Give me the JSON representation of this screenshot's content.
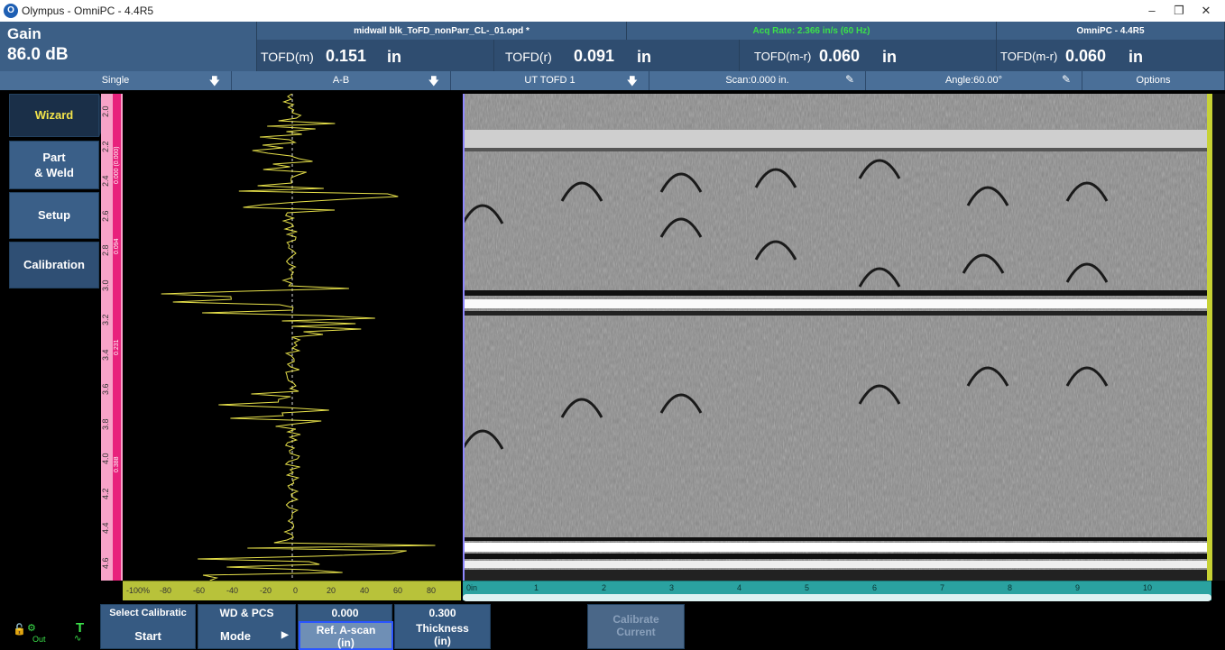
{
  "window": {
    "app_title": "Olympus - OmniPC - 4.4R5",
    "logo_glyph": "O"
  },
  "header": {
    "gain_label": "Gain",
    "gain_value": "86.0 dB",
    "file_name": "midwall blk_ToFD_nonParr_CL-_01.opd *",
    "acq_rate": "Acq Rate: 2.366 in/s (60 Hz)",
    "app_version": "OmniPC - 4.4R5",
    "readouts": [
      {
        "label": "TOFD(m)",
        "value": "0.151",
        "unit": "in"
      },
      {
        "label": "TOFD(r)",
        "value": "0.091",
        "unit": "in"
      },
      {
        "label": "TOFD(m-r)",
        "value": "0.060",
        "unit": "in"
      },
      {
        "label": "TOFD(m-r)",
        "value": "0.060",
        "unit": "in"
      }
    ]
  },
  "selectors": [
    {
      "label": "Single",
      "icon": "dropdown-arrow-icon"
    },
    {
      "label": "A-B",
      "icon": "dropdown-arrow-icon"
    },
    {
      "label": "UT TOFD 1",
      "icon": "dropdown-arrow-icon"
    },
    {
      "label": "Scan:0.000 in.",
      "icon": "pencil-icon"
    },
    {
      "label": "Angle:60.00°",
      "icon": "pencil-icon"
    },
    {
      "label": "Options",
      "icon": ""
    }
  ],
  "wizard": {
    "items": [
      {
        "label": "Wizard",
        "active": true
      },
      {
        "label_line1": "Part",
        "label_line2": "& Weld"
      },
      {
        "label": "Setup"
      },
      {
        "label": "Calibration"
      }
    ]
  },
  "ascan": {
    "depth_ticks": [
      "2.0",
      "2.2",
      "2.4",
      "2.6",
      "2.8",
      "3.0",
      "3.2",
      "3.4",
      "3.6",
      "3.8",
      "4.0",
      "4.2",
      "4.4",
      "4.6"
    ],
    "side_labels": [
      "0.000 (0.000)",
      "0.094",
      "0.231",
      "0.388"
    ],
    "amp_ticks": [
      "-100%",
      "-80",
      "-60",
      "-40",
      "-20",
      "0",
      "20",
      "40",
      "60",
      "80"
    ]
  },
  "bscan": {
    "scan_ticks": [
      "0in",
      "1",
      "2",
      "3",
      "4",
      "5",
      "6",
      "7",
      "8",
      "9",
      "10"
    ]
  },
  "bottom": {
    "select_calibration": {
      "top": "Select Calibratic",
      "main": "Start"
    },
    "wd_pcs": {
      "top": "WD & PCS",
      "main": "Mode"
    },
    "ref_ascan": {
      "top": "0.000",
      "main_l1": "Ref. A-scan",
      "main_l2": "(in)"
    },
    "thickness": {
      "top": "0.300",
      "main_l1": "Thickness",
      "main_l2": "(in)"
    },
    "calibrate": {
      "l1": "Calibrate",
      "l2": "Current"
    },
    "status_out": "Out"
  },
  "colors": {
    "accent_yellow": "#f2e34a",
    "acq_green": "#3be04a",
    "magenta": "#e8217c",
    "teal": "#2aa2a0"
  }
}
